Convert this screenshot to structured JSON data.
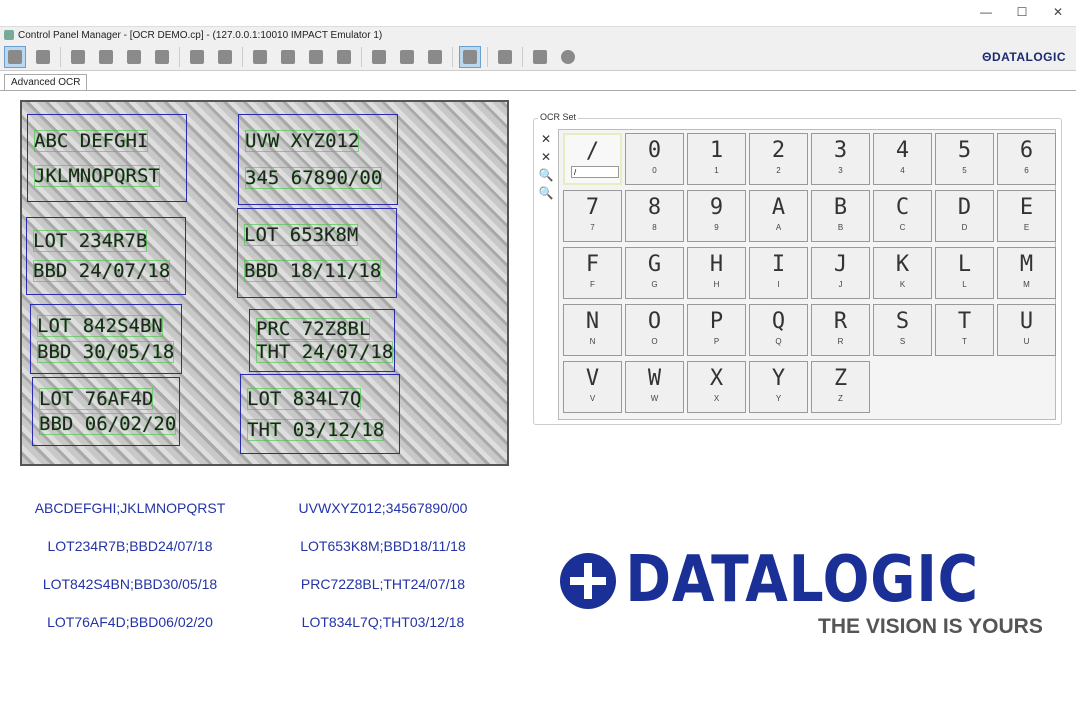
{
  "window": {
    "title": "Control Panel Manager - [OCR DEMO.cp] - (127.0.0.1:10010 IMPACT Emulator 1)",
    "controls": [
      "—",
      "☐",
      "✕"
    ]
  },
  "toolbar": {
    "brand": "ΘDATALOGIC",
    "icons": [
      "run-icon",
      "new-icon",
      "open-icon",
      "save-icon",
      "save-all-icon",
      "upload-icon",
      "download-icon",
      "cut-icon",
      "copy-icon",
      "paste-icon",
      "delete-icon",
      "print-icon",
      "preview-icon",
      "page-icon",
      "search-icon",
      "network-icon",
      "split-icon",
      "panel-icon",
      "record-icon"
    ]
  },
  "tabs": [
    {
      "label": "Advanced OCR",
      "active": true
    }
  ],
  "image": {
    "regions": [
      {
        "lines": [
          "ABC DEFGHI",
          "JKLMNOPQRST"
        ]
      },
      {
        "lines": [
          "UVW XYZ012",
          "345 67890/00"
        ]
      },
      {
        "lines": [
          "LOT 234R7B",
          "BBD 24/07/18"
        ]
      },
      {
        "lines": [
          "LOT 653K8M",
          "BBD 18/11/18"
        ]
      },
      {
        "lines": [
          "LOT 842S4BN",
          "BBD 30/05/18"
        ]
      },
      {
        "lines": [
          "PRC 72Z8BL",
          "THT 24/07/18"
        ]
      },
      {
        "lines": [
          "LOT 76AF4D",
          "BBD 06/02/20"
        ]
      },
      {
        "lines": [
          "LOT 834L7Q",
          "THT 03/12/18"
        ]
      }
    ]
  },
  "ocr_set": {
    "label": "OCR Set",
    "side_tools": [
      "✕",
      "✕",
      "🔍",
      "🔍"
    ],
    "first": {
      "glyph": "/",
      "value": "/"
    },
    "chars": [
      "0",
      "1",
      "2",
      "3",
      "4",
      "5",
      "6",
      "7",
      "8",
      "9",
      "A",
      "B",
      "C",
      "D",
      "E",
      "F",
      "G",
      "H",
      "I",
      "J",
      "K",
      "L",
      "M",
      "N",
      "O",
      "P",
      "Q",
      "R",
      "S",
      "T",
      "U",
      "V",
      "W",
      "X",
      "Y",
      "Z"
    ]
  },
  "results": [
    "ABCDEFGHI;JKLMNOPQRST",
    "UVWXYZ012;34567890/00",
    "LOT234R7B;BBD24/07/18",
    "LOT653K8M;BBD18/11/18",
    "LOT842S4BN;BBD30/05/18",
    "PRC72Z8BL;THT24/07/18",
    "LOT76AF4D;BBD06/02/20",
    "LOT834L7Q;THT03/12/18"
  ],
  "logo": {
    "word": "DATALOGIC",
    "tagline": "THE VISION IS YOURS"
  }
}
